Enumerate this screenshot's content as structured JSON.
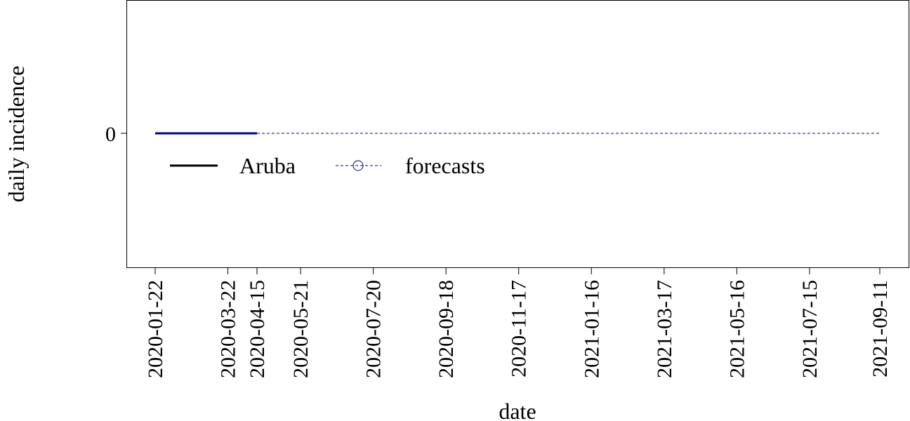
{
  "chart_data": {
    "type": "line",
    "xlabel": "date",
    "ylabel": "daily incidence",
    "x_ticks": [
      "2020-01-22",
      "2020-03-22",
      "2020-04-15",
      "2020-05-21",
      "2020-07-20",
      "2020-09-18",
      "2020-11-17",
      "2021-01-16",
      "2021-03-17",
      "2021-05-16",
      "2021-07-15",
      "2021-09-11"
    ],
    "y_ticks": [
      0
    ],
    "xlim": [
      "2020-01-22",
      "2021-09-11"
    ],
    "ylim": [
      -1,
      1
    ],
    "grid": false,
    "legend_position": "center-left",
    "series": [
      {
        "name": "Aruba",
        "style": "solid",
        "color": "#000080",
        "points": [
          {
            "x": "2020-01-22",
            "y": 0
          },
          {
            "x": "2020-04-15",
            "y": 0
          }
        ]
      },
      {
        "name": "forecasts",
        "style": "dashed",
        "marker": "open-circle",
        "color": "#000080",
        "points": [
          {
            "x": "2020-04-15",
            "y": 0
          },
          {
            "x": "2021-09-11",
            "y": 0
          }
        ]
      }
    ],
    "legend": [
      {
        "label": "Aruba",
        "style": "solid",
        "color": "#000000"
      },
      {
        "label": "forecasts",
        "style": "dashed",
        "marker": "open-circle",
        "color": "#000080"
      }
    ]
  }
}
